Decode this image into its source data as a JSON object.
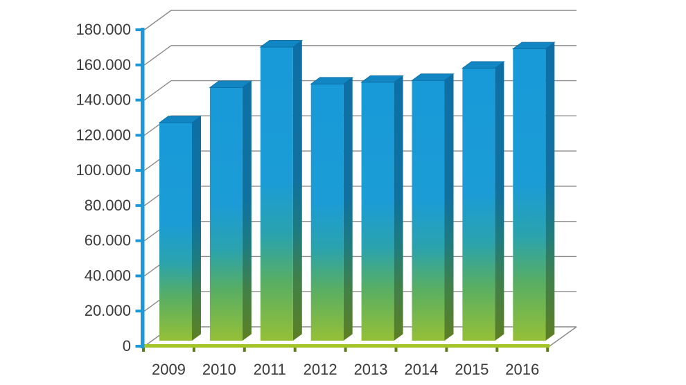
{
  "chart_data": {
    "type": "bar",
    "variant": "3d-column",
    "title": "",
    "xlabel": "",
    "ylabel": "",
    "legend": "none",
    "grid": true,
    "background": "#ffffff",
    "categories": [
      "2009",
      "2010",
      "2011",
      "2012",
      "2013",
      "2014",
      "2015",
      "2016"
    ],
    "values": [
      124000,
      144000,
      167000,
      146000,
      147000,
      148000,
      155000,
      166000
    ],
    "values_estimated": true,
    "ylim": [
      0,
      180000
    ],
    "y_tick_step": 20000,
    "y_ticks": [
      0,
      20000,
      40000,
      60000,
      80000,
      100000,
      120000,
      140000,
      160000,
      180000
    ],
    "y_tick_labels": [
      "0",
      "20.000",
      "40.000",
      "60.000",
      "80.000",
      "100.000",
      "120.000",
      "140.000",
      "160.000",
      "180.000"
    ],
    "colors": {
      "axis": "#1b99d7",
      "gridline": "#8a8a8a",
      "text": "#3a3a3a",
      "floor_line": "#a3c52a",
      "floor_tick": "#5f7d1f",
      "bar_top_face": "#1186c3",
      "bar_top_edge": "#0c6da1",
      "front_gradient": [
        {
          "o": "0%",
          "c": "#189ad8"
        },
        {
          "o": "46%",
          "c": "#1b9cd6"
        },
        {
          "o": "64%",
          "c": "#2aa3ae"
        },
        {
          "o": "80%",
          "c": "#58ae63"
        },
        {
          "o": "100%",
          "c": "#95c037"
        }
      ],
      "side_gradient": [
        {
          "o": "0%",
          "c": "#0e6fa6"
        },
        {
          "o": "46%",
          "c": "#10719f"
        },
        {
          "o": "64%",
          "c": "#1e7c7f"
        },
        {
          "o": "80%",
          "c": "#418148"
        },
        {
          "o": "100%",
          "c": "#5d7f23"
        }
      ]
    }
  }
}
